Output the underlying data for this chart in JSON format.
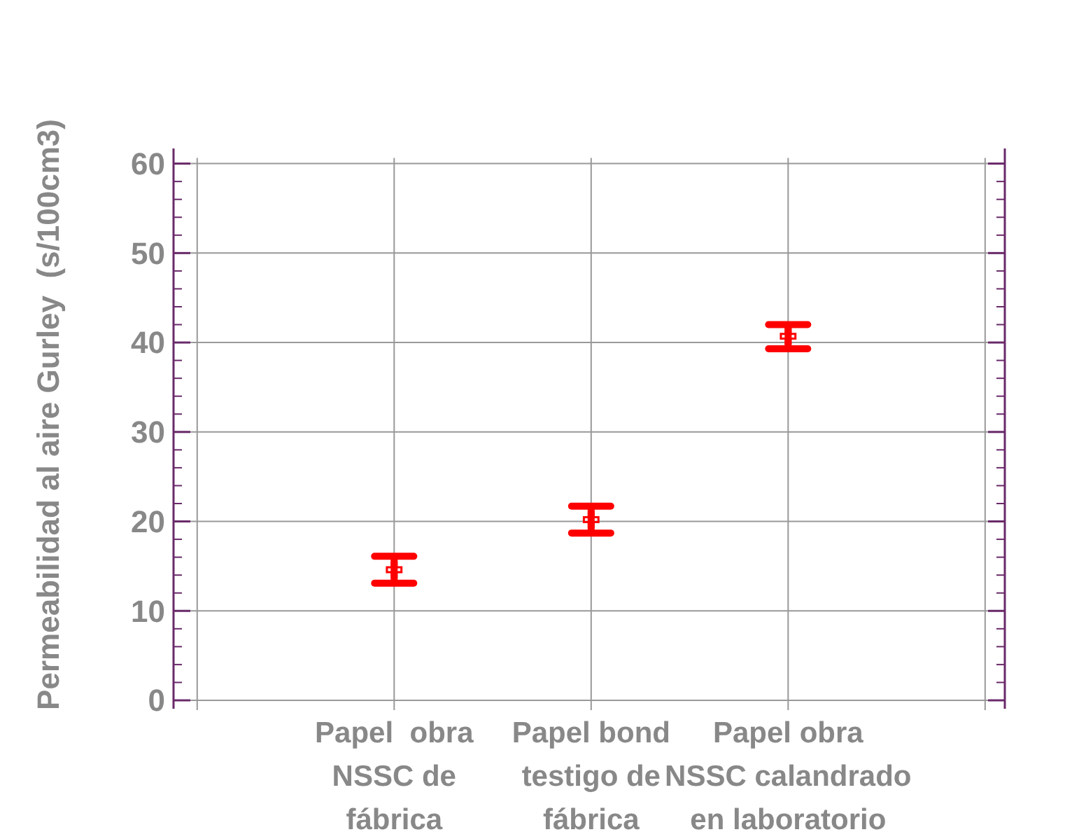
{
  "chart_data": {
    "type": "scatter",
    "ylabel": "Permeabilidad al aire Gurley  (s/100cm3)",
    "categories": [
      "Papel  obra\nNSSC de\nfábrica",
      "Papel bond\ntestigo de\nfábrica",
      "Papel obra\nNSSC calandrado\nen laboratorio"
    ],
    "values": [
      14.6,
      20.2,
      40.7
    ],
    "errors": [
      [
        13.1,
        16.1
      ],
      [
        18.7,
        21.7
      ],
      [
        39.3,
        42.0
      ]
    ],
    "color": "#ff0000",
    "marker": "cross",
    "ylim": [
      0,
      60
    ],
    "yticks": [
      0,
      10,
      20,
      30,
      40,
      50,
      60
    ],
    "grid": true
  }
}
